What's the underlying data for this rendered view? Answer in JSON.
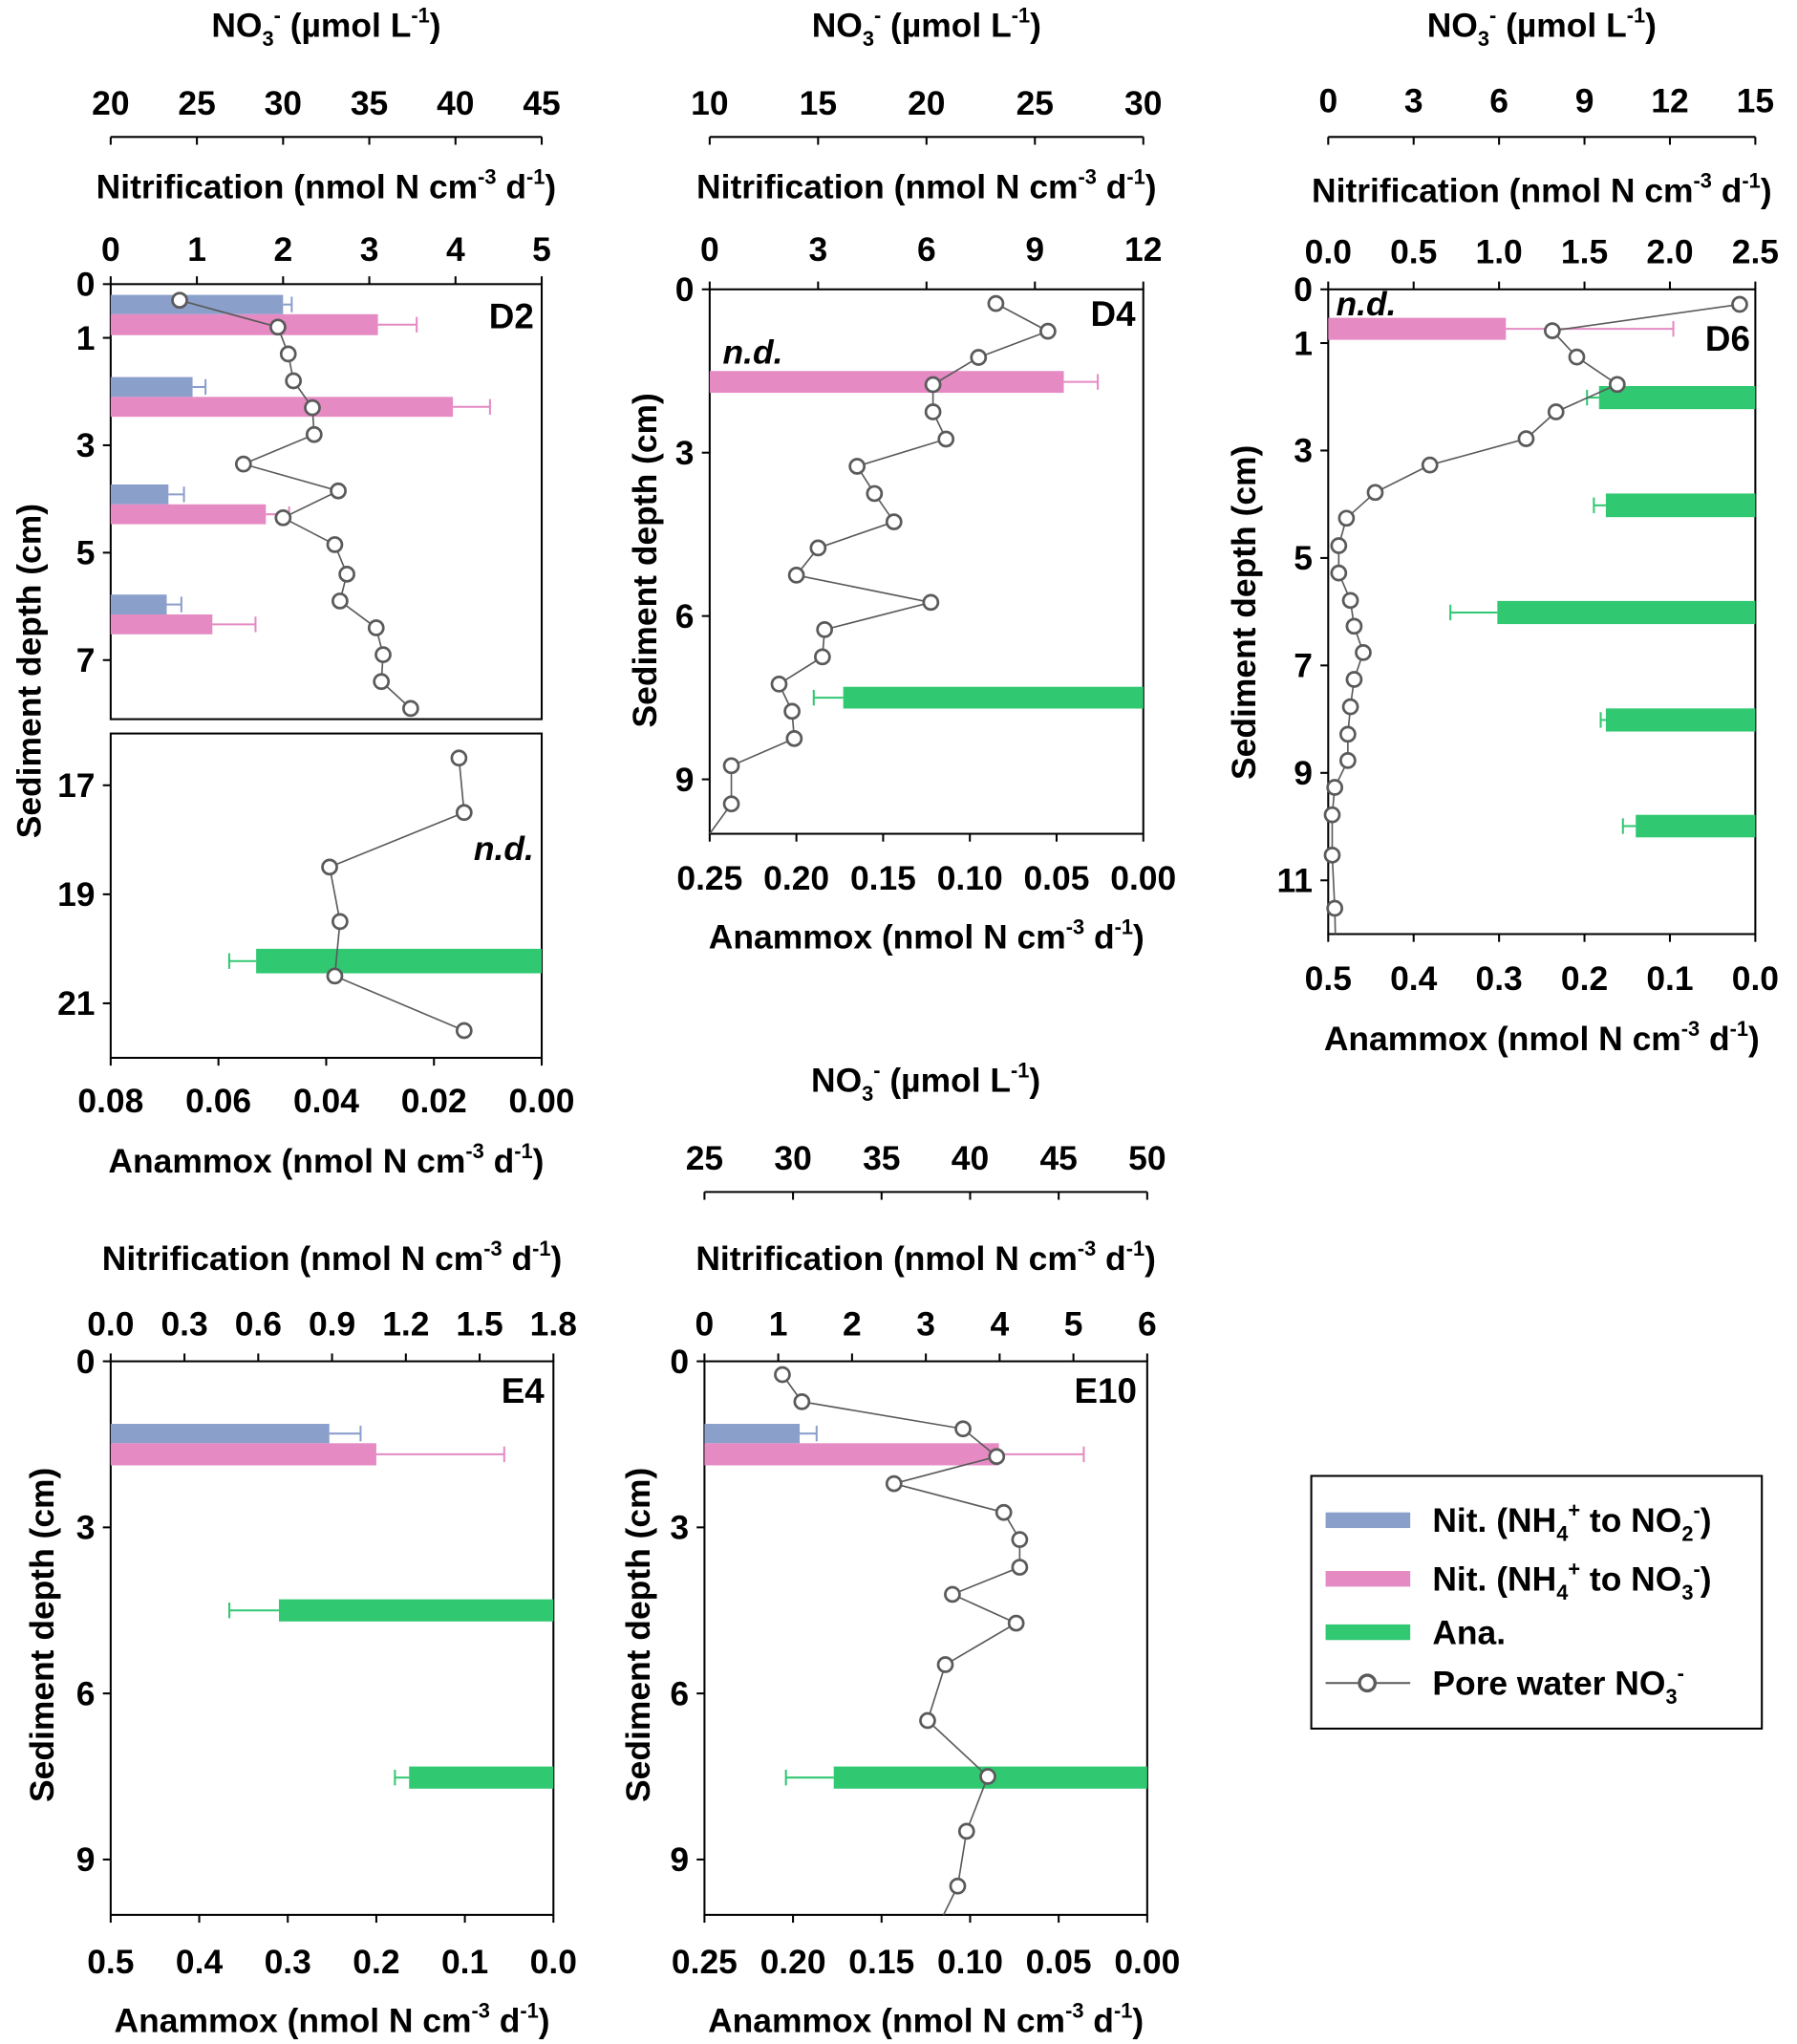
{
  "titles": {
    "no3": [
      [
        "NO",
        ""
      ],
      [
        "3",
        "sub"
      ],
      [
        "-",
        "sup"
      ],
      [
        " (µmol L",
        ""
      ],
      [
        "-1",
        "sup"
      ],
      [
        ")",
        ""
      ]
    ],
    "nit": [
      [
        "Nitrification  (nmol N cm",
        ""
      ],
      [
        "-3",
        "sup"
      ],
      [
        " d",
        ""
      ],
      [
        "-1",
        "sup"
      ],
      [
        ")",
        ""
      ]
    ],
    "ana": [
      [
        "Anammox (nmol N cm",
        ""
      ],
      [
        "-3",
        "sup"
      ],
      [
        " d",
        ""
      ],
      [
        "-1",
        "sup"
      ],
      [
        ")",
        ""
      ]
    ],
    "depth": "Sediment depth (cm)"
  },
  "colors": {
    "nit_no2": "#8b9fcb",
    "nit_no3": "#e58ac3",
    "anammox": "#31c872",
    "pore_water": "#5a5a5a"
  },
  "legend": [
    {
      "key": "nit_no2",
      "type": "bar",
      "label": [
        [
          "Nit. (NH",
          ""
        ],
        [
          "4",
          "sub"
        ],
        [
          "+",
          "sup"
        ],
        [
          " to NO",
          ""
        ],
        [
          "2",
          "sub"
        ],
        [
          "-",
          "sup"
        ],
        [
          ")",
          ""
        ]
      ]
    },
    {
      "key": "nit_no3",
      "type": "bar",
      "label": [
        [
          "Nit. (NH",
          ""
        ],
        [
          "4",
          "sub"
        ],
        [
          "+",
          "sup"
        ],
        [
          " to NO",
          ""
        ],
        [
          "3",
          "sub"
        ],
        [
          "-",
          "sup"
        ],
        [
          ")",
          ""
        ]
      ]
    },
    {
      "key": "anammox",
      "type": "bar",
      "label": [
        [
          "Ana.",
          ""
        ]
      ]
    },
    {
      "key": "pore_water",
      "type": "line",
      "label": [
        [
          "Pore water NO",
          ""
        ],
        [
          "3",
          "sub"
        ],
        [
          "-",
          "sup"
        ]
      ]
    }
  ],
  "chart_data": [
    {
      "type": "bar+line",
      "id": "D2",
      "label": "D2",
      "nd_label": "n.d.",
      "no3_axis": {
        "range": [
          20,
          45
        ],
        "ticks": [
          "20",
          "25",
          "30",
          "35",
          "40",
          "45"
        ]
      },
      "nit_axis": {
        "range": [
          0,
          5
        ],
        "ticks": [
          "0",
          "1",
          "2",
          "3",
          "4",
          "5"
        ]
      },
      "ana_axis": {
        "range": [
          0.08,
          0
        ],
        "ticks": [
          "0.08",
          "0.06",
          "0.04",
          "0.02",
          "0.00"
        ]
      },
      "depth_ticks": [
        "0",
        "1",
        "3",
        "5",
        "7",
        "17",
        "19",
        "21"
      ],
      "depth_range": [
        [
          0,
          8.1
        ],
        [
          16.05,
          22.0
        ]
      ],
      "nit_no2": [
        {
          "depth": [
            0.2,
            0.56
          ],
          "value": 2.0,
          "err": 0.1
        },
        {
          "depth": [
            1.73,
            2.1
          ],
          "value": 0.95,
          "err": 0.15
        },
        {
          "depth": [
            3.73,
            4.1
          ],
          "value": 0.67,
          "err": 0.18
        },
        {
          "depth": [
            5.78,
            6.15
          ],
          "value": 0.65,
          "err": 0.17
        }
      ],
      "nit_no3": [
        {
          "depth": [
            0.56,
            0.95
          ],
          "value": 3.1,
          "err": 0.45
        },
        {
          "depth": [
            2.1,
            2.47
          ],
          "value": 3.97,
          "err": 0.43
        },
        {
          "depth": [
            4.1,
            4.47
          ],
          "value": 1.8,
          "err": 0.27
        },
        {
          "depth": [
            6.15,
            6.52
          ],
          "value": 1.18,
          "err": 0.5
        }
      ],
      "anammox": [
        {
          "depth": [
            20.0,
            20.45
          ],
          "value": 0.053,
          "err": 0.005
        }
      ],
      "pore_water_no3": [
        [
          0.3,
          24.0
        ],
        [
          0.8,
          29.7
        ],
        [
          1.3,
          30.3
        ],
        [
          1.8,
          30.6
        ],
        [
          2.3,
          31.7
        ],
        [
          2.8,
          31.8
        ],
        [
          3.35,
          27.7
        ],
        [
          3.85,
          33.2
        ],
        [
          4.35,
          30.0
        ],
        [
          4.85,
          33.0
        ],
        [
          5.4,
          33.7
        ],
        [
          5.9,
          33.3
        ],
        [
          6.4,
          35.4
        ],
        [
          6.9,
          35.8
        ],
        [
          7.4,
          35.7
        ],
        [
          7.9,
          37.4
        ],
        [
          16.5,
          40.2
        ],
        [
          17.5,
          40.5
        ],
        [
          18.5,
          32.7
        ],
        [
          19.5,
          33.3
        ],
        [
          20.5,
          33.0
        ],
        [
          21.5,
          40.5
        ]
      ]
    },
    {
      "type": "bar+line",
      "id": "D4",
      "label": "D4",
      "nd_label": "n.d.",
      "no3_axis": {
        "range": [
          10,
          30
        ],
        "ticks": [
          "10",
          "15",
          "20",
          "25",
          "30"
        ]
      },
      "nit_axis": {
        "range": [
          0,
          12
        ],
        "ticks": [
          "0",
          "3",
          "6",
          "9",
          "12"
        ]
      },
      "ana_axis": {
        "range": [
          0.25,
          0
        ],
        "ticks": [
          "0.25",
          "0.20",
          "0.15",
          "0.10",
          "0.05",
          "0.00"
        ]
      },
      "depth_ticks": [
        "0",
        "3",
        "6",
        "9"
      ],
      "depth_range": [
        [
          0,
          10.0
        ]
      ],
      "nit_no2": [],
      "nit_no3": [
        {
          "depth": [
            1.5,
            1.9
          ],
          "value": 9.8,
          "err": 0.94
        }
      ],
      "anammox": [
        {
          "depth": [
            7.3,
            7.7
          ],
          "value": 0.173,
          "err": 0.017
        }
      ],
      "pore_water_no3": [
        [
          0.26,
          23.2
        ],
        [
          0.77,
          25.6
        ],
        [
          1.25,
          22.4
        ],
        [
          1.75,
          20.3
        ],
        [
          2.25,
          20.3
        ],
        [
          2.75,
          20.9
        ],
        [
          3.25,
          16.8
        ],
        [
          3.75,
          17.6
        ],
        [
          4.27,
          18.5
        ],
        [
          4.75,
          15.0
        ],
        [
          5.25,
          14.0
        ],
        [
          5.75,
          20.2
        ],
        [
          6.25,
          15.3
        ],
        [
          6.75,
          15.2
        ],
        [
          7.25,
          13.2
        ],
        [
          7.75,
          13.8
        ],
        [
          8.25,
          13.9
        ],
        [
          8.75,
          11.0
        ],
        [
          9.45,
          11.0
        ],
        [
          10.0,
          10.0
        ]
      ]
    },
    {
      "type": "bar+line",
      "id": "D6",
      "label": "D6",
      "nd_label": "n.d.",
      "no3_axis": {
        "range": [
          0,
          15
        ],
        "ticks": [
          "0",
          "3",
          "6",
          "9",
          "12",
          "15"
        ]
      },
      "nit_axis": {
        "range": [
          0,
          2.5
        ],
        "ticks": [
          "0.0",
          "0.5",
          "1.0",
          "1.5",
          "2.0",
          "2.5"
        ]
      },
      "ana_axis": {
        "range": [
          0.5,
          0
        ],
        "ticks": [
          "0.5",
          "0.4",
          "0.3",
          "0.2",
          "0.1",
          "0.0"
        ]
      },
      "depth_ticks": [
        "0",
        "1",
        "3",
        "5",
        "7",
        "9",
        "11"
      ],
      "depth_range": [
        [
          0,
          12.0
        ]
      ],
      "nit_no2": [],
      "nit_no3": [
        {
          "depth": [
            0.53,
            0.94
          ],
          "value": 1.04,
          "err": 0.98
        }
      ],
      "anammox": [
        {
          "depth": [
            1.8,
            2.23
          ],
          "value": 0.183,
          "err": 0.014
        },
        {
          "depth": [
            3.8,
            4.24
          ],
          "value": 0.175,
          "err": 0.014
        },
        {
          "depth": [
            5.8,
            6.23
          ],
          "value": 0.302,
          "err": 0.055
        },
        {
          "depth": [
            7.8,
            8.23
          ],
          "value": 0.175,
          "err": 0.006
        },
        {
          "depth": [
            9.78,
            10.2
          ],
          "value": 0.14,
          "err": 0.015
        }
      ],
      "pore_water_no3": [
        [
          0.28,
          14.45
        ],
        [
          0.77,
          7.87
        ],
        [
          1.26,
          8.73
        ],
        [
          1.77,
          10.15
        ],
        [
          2.28,
          8.0
        ],
        [
          2.78,
          6.95
        ],
        [
          3.27,
          3.57
        ],
        [
          3.78,
          1.65
        ],
        [
          4.26,
          0.64
        ],
        [
          4.77,
          0.37
        ],
        [
          5.28,
          0.37
        ],
        [
          5.79,
          0.78
        ],
        [
          6.27,
          0.91
        ],
        [
          6.76,
          1.23
        ],
        [
          7.26,
          0.91
        ],
        [
          7.77,
          0.78
        ],
        [
          8.28,
          0.69
        ],
        [
          8.77,
          0.69
        ],
        [
          9.27,
          0.23
        ],
        [
          9.78,
          0.14
        ],
        [
          10.53,
          0.14
        ],
        [
          11.52,
          0.23
        ],
        [
          12.0,
          0.25
        ]
      ]
    },
    {
      "type": "bar",
      "id": "E4",
      "label": "E4",
      "nit_axis": {
        "range": [
          0,
          1.8
        ],
        "ticks": [
          "0.0",
          "0.3",
          "0.6",
          "0.9",
          "1.2",
          "1.5",
          "1.8"
        ]
      },
      "ana_axis": {
        "range": [
          0.5,
          0
        ],
        "ticks": [
          "0.5",
          "0.4",
          "0.3",
          "0.2",
          "0.1",
          "0.0"
        ]
      },
      "depth_ticks": [
        "0",
        "3",
        "6",
        "9"
      ],
      "depth_range": [
        [
          0,
          10.0
        ]
      ],
      "nit_no2": [
        {
          "depth": [
            1.13,
            1.48
          ],
          "value": 0.889,
          "err": 0.127
        }
      ],
      "nit_no3": [
        {
          "depth": [
            1.48,
            1.88
          ],
          "value": 1.08,
          "err": 0.52
        }
      ],
      "anammox": [
        {
          "depth": [
            4.3,
            4.7
          ],
          "value": 0.31,
          "err": 0.056
        },
        {
          "depth": [
            7.32,
            7.72
          ],
          "value": 0.163,
          "err": 0.016
        }
      ],
      "pore_water_no3": []
    },
    {
      "type": "bar+line",
      "id": "E10",
      "label": "E10",
      "no3_axis": {
        "range": [
          25,
          50
        ],
        "ticks": [
          "25",
          "30",
          "35",
          "40",
          "45",
          "50"
        ]
      },
      "nit_axis": {
        "range": [
          0,
          6
        ],
        "ticks": [
          "0",
          "1",
          "2",
          "3",
          "4",
          "5",
          "6"
        ]
      },
      "ana_axis": {
        "range": [
          0.25,
          0
        ],
        "ticks": [
          "0.25",
          "0.20",
          "0.15",
          "0.10",
          "0.05",
          "0.00"
        ]
      },
      "depth_ticks": [
        "0",
        "3",
        "6",
        "9"
      ],
      "depth_range": [
        [
          0,
          10.0
        ]
      ],
      "nit_no2": [
        {
          "depth": [
            1.13,
            1.48
          ],
          "value": 1.29,
          "err": 0.23
        }
      ],
      "nit_no3": [
        {
          "depth": [
            1.48,
            1.88
          ],
          "value": 3.99,
          "err": 1.15
        }
      ],
      "anammox": [
        {
          "depth": [
            7.32,
            7.72
          ],
          "value": 0.177,
          "err": 0.027
        }
      ],
      "pore_water_no3": [
        [
          0.24,
          29.4
        ],
        [
          0.73,
          30.5
        ],
        [
          1.22,
          39.6
        ],
        [
          1.72,
          41.5
        ],
        [
          2.21,
          35.7
        ],
        [
          2.73,
          41.9
        ],
        [
          3.22,
          42.8
        ],
        [
          3.72,
          42.8
        ],
        [
          4.21,
          39.0
        ],
        [
          4.73,
          42.6
        ],
        [
          5.48,
          38.6
        ],
        [
          6.49,
          37.6
        ],
        [
          7.5,
          41.0
        ],
        [
          8.49,
          39.8
        ],
        [
          9.48,
          39.3
        ],
        [
          10.0,
          38.5
        ]
      ]
    }
  ]
}
